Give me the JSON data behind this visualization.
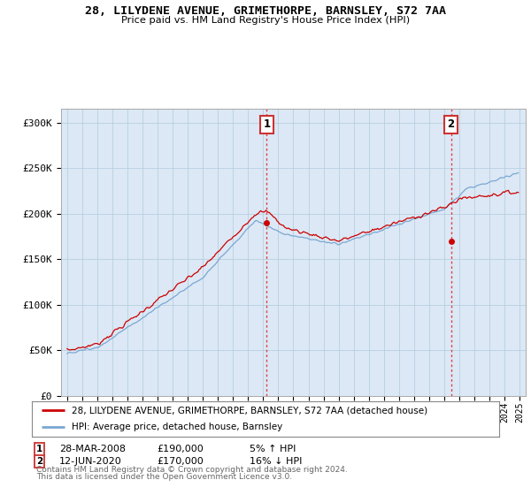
{
  "title": "28, LILYDENE AVENUE, GRIMETHORPE, BARNSLEY, S72 7AA",
  "subtitle": "Price paid vs. HM Land Registry's House Price Index (HPI)",
  "ylabel_ticks": [
    "£0",
    "£50K",
    "£100K",
    "£150K",
    "£200K",
    "£250K",
    "£300K"
  ],
  "ytick_values": [
    0,
    50000,
    100000,
    150000,
    200000,
    250000,
    300000
  ],
  "ylim": [
    0,
    315000
  ],
  "xlim_left": 1994.6,
  "xlim_right": 2025.4,
  "sale1_date_num": 2008.23,
  "sale1_price": 190000,
  "sale1_label": "1",
  "sale1_date_str": "28-MAR-2008",
  "sale1_pct": "5% ↑ HPI",
  "sale2_date_num": 2020.45,
  "sale2_price": 170000,
  "sale2_label": "2",
  "sale2_date_str": "12-JUN-2020",
  "sale2_pct": "16% ↓ HPI",
  "legend_line1": "28, LILYDENE AVENUE, GRIMETHORPE, BARNSLEY, S72 7AA (detached house)",
  "legend_line2": "HPI: Average price, detached house, Barnsley",
  "footer1": "Contains HM Land Registry data © Crown copyright and database right 2024.",
  "footer2": "This data is licensed under the Open Government Licence v3.0.",
  "line_red": "#cc0000",
  "line_blue": "#7aa8d2",
  "bg_color": "#dce8f5",
  "grid_color": "#b8cfe0",
  "vline_color": "#dd4444",
  "marker_box_color": "#cc3333",
  "title_font": "DejaVu Sans Mono"
}
